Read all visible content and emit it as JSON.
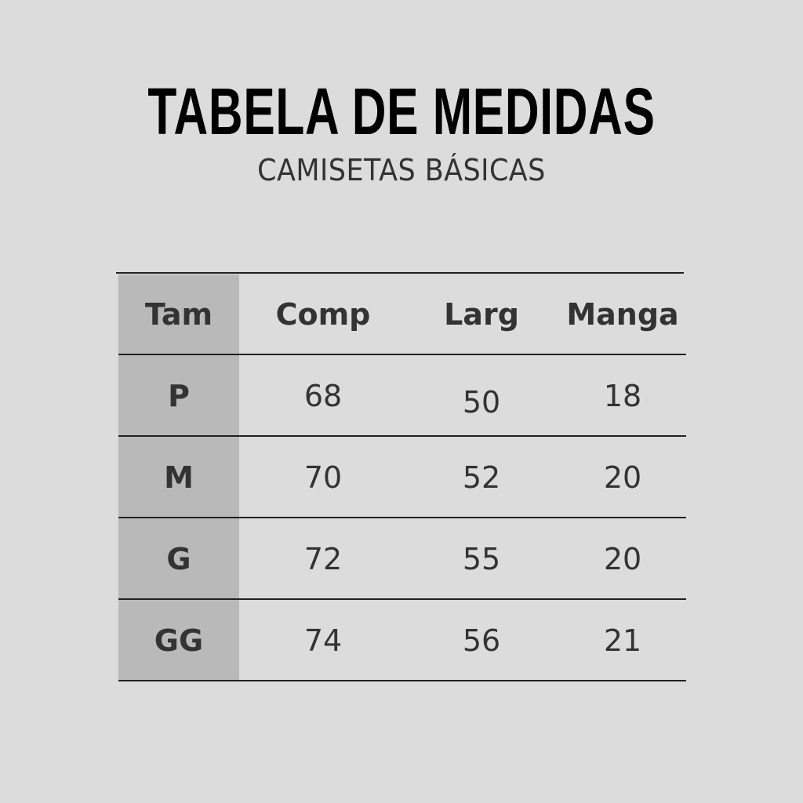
{
  "title": "TABELA DE MEDIDAS",
  "subtitle": "CAMISETAS BÁSICAS",
  "table": {
    "headers": [
      "Tam",
      "Comp",
      "Larg",
      "Manga"
    ],
    "rows": [
      [
        "P",
        "68",
        "50",
        "18"
      ],
      [
        "M",
        "70",
        "52",
        "20"
      ],
      [
        "G",
        "72",
        "55",
        "20"
      ],
      [
        "GG",
        "74",
        "56",
        "21"
      ]
    ]
  },
  "colors": {
    "background": "#dcdcdc",
    "size_column": "#b9b9b9",
    "text": "#333333",
    "title": "#000000"
  }
}
